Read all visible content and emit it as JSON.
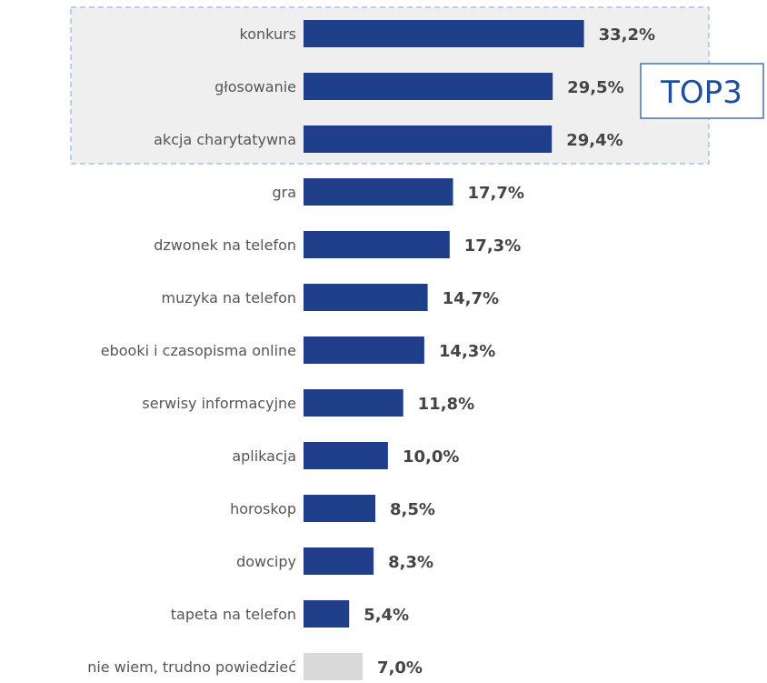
{
  "chart_data": {
    "type": "bar",
    "orientation": "horizontal",
    "categories": [
      "konkurs",
      "głosowanie",
      "akcja charytatywna",
      "gra",
      "dzwonek na telefon",
      "muzyka na telefon",
      "ebooki i czasopisma online",
      "serwisy informacyjne",
      "aplikacja",
      "horoskop",
      "dowcipy",
      "tapeta na telefon",
      "nie wiem, trudno powiedzieć"
    ],
    "values": [
      33.2,
      29.5,
      29.4,
      17.7,
      17.3,
      14.7,
      14.3,
      11.8,
      10.0,
      8.5,
      8.3,
      5.4,
      7.0
    ],
    "value_labels": [
      "33,2%",
      "29,5%",
      "29,4%",
      "17,7%",
      "17,3%",
      "14,7%",
      "14,3%",
      "11,8%",
      "10,0%",
      "8,5%",
      "8,3%",
      "5,4%",
      "7,0%"
    ],
    "bar_colors": [
      "#1f3f8a",
      "#1f3f8a",
      "#1f3f8a",
      "#1f3f8a",
      "#1f3f8a",
      "#1f3f8a",
      "#1f3f8a",
      "#1f3f8a",
      "#1f3f8a",
      "#1f3f8a",
      "#1f3f8a",
      "#1f3f8a",
      "#d9d9d9"
    ],
    "xlim": [
      0,
      34
    ],
    "grid": false,
    "highlight": {
      "label": "TOP3",
      "categories": [
        "konkurs",
        "głosowanie",
        "akcja charytatywna"
      ],
      "fill": "#efefef",
      "border_color": "#a9c4e4",
      "label_color": "#1f4e9c"
    }
  }
}
